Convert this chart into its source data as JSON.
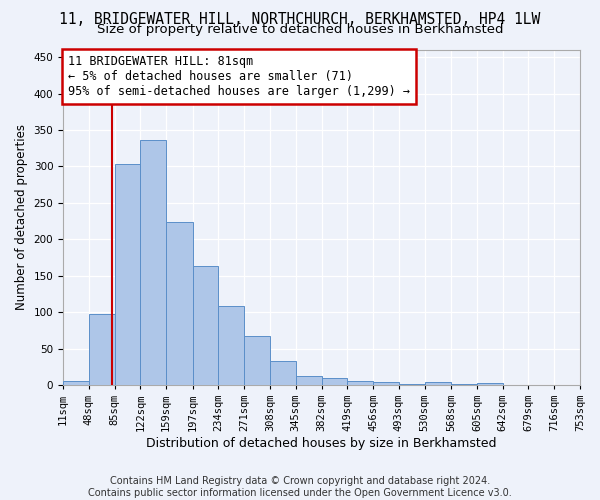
{
  "title": "11, BRIDGEWATER HILL, NORTHCHURCH, BERKHAMSTED, HP4 1LW",
  "subtitle": "Size of property relative to detached houses in Berkhamsted",
  "xlabel": "Distribution of detached houses by size in Berkhamsted",
  "ylabel": "Number of detached properties",
  "bar_values": [
    5,
    97,
    303,
    337,
    224,
    164,
    108,
    67,
    33,
    12,
    10,
    6,
    4,
    1,
    4,
    1,
    3
  ],
  "bin_labels": [
    "11sqm",
    "48sqm",
    "85sqm",
    "122sqm",
    "159sqm",
    "197sqm",
    "234sqm",
    "271sqm",
    "308sqm",
    "345sqm",
    "382sqm",
    "419sqm",
    "456sqm",
    "493sqm",
    "530sqm",
    "568sqm",
    "605sqm",
    "642sqm",
    "679sqm",
    "716sqm",
    "753sqm"
  ],
  "bar_color": "#aec6e8",
  "bar_edge_color": "#5b8fc9",
  "vline_color": "#cc0000",
  "annotation_line1": "11 BRIDGEWATER HILL: 81sqm",
  "annotation_line2": "← 5% of detached houses are smaller (71)",
  "annotation_line3": "95% of semi-detached houses are larger (1,299) →",
  "annotation_box_edge_color": "#cc0000",
  "ylim": [
    0,
    460
  ],
  "yticks": [
    0,
    50,
    100,
    150,
    200,
    250,
    300,
    350,
    400,
    450
  ],
  "background_color": "#eef2fa",
  "grid_color": "#ffffff",
  "footer_text": "Contains HM Land Registry data © Crown copyright and database right 2024.\nContains public sector information licensed under the Open Government Licence v3.0.",
  "title_fontsize": 10.5,
  "subtitle_fontsize": 9.5,
  "xlabel_fontsize": 9,
  "ylabel_fontsize": 8.5,
  "tick_fontsize": 7.5,
  "footer_fontsize": 7,
  "annotation_fontsize": 8.5
}
